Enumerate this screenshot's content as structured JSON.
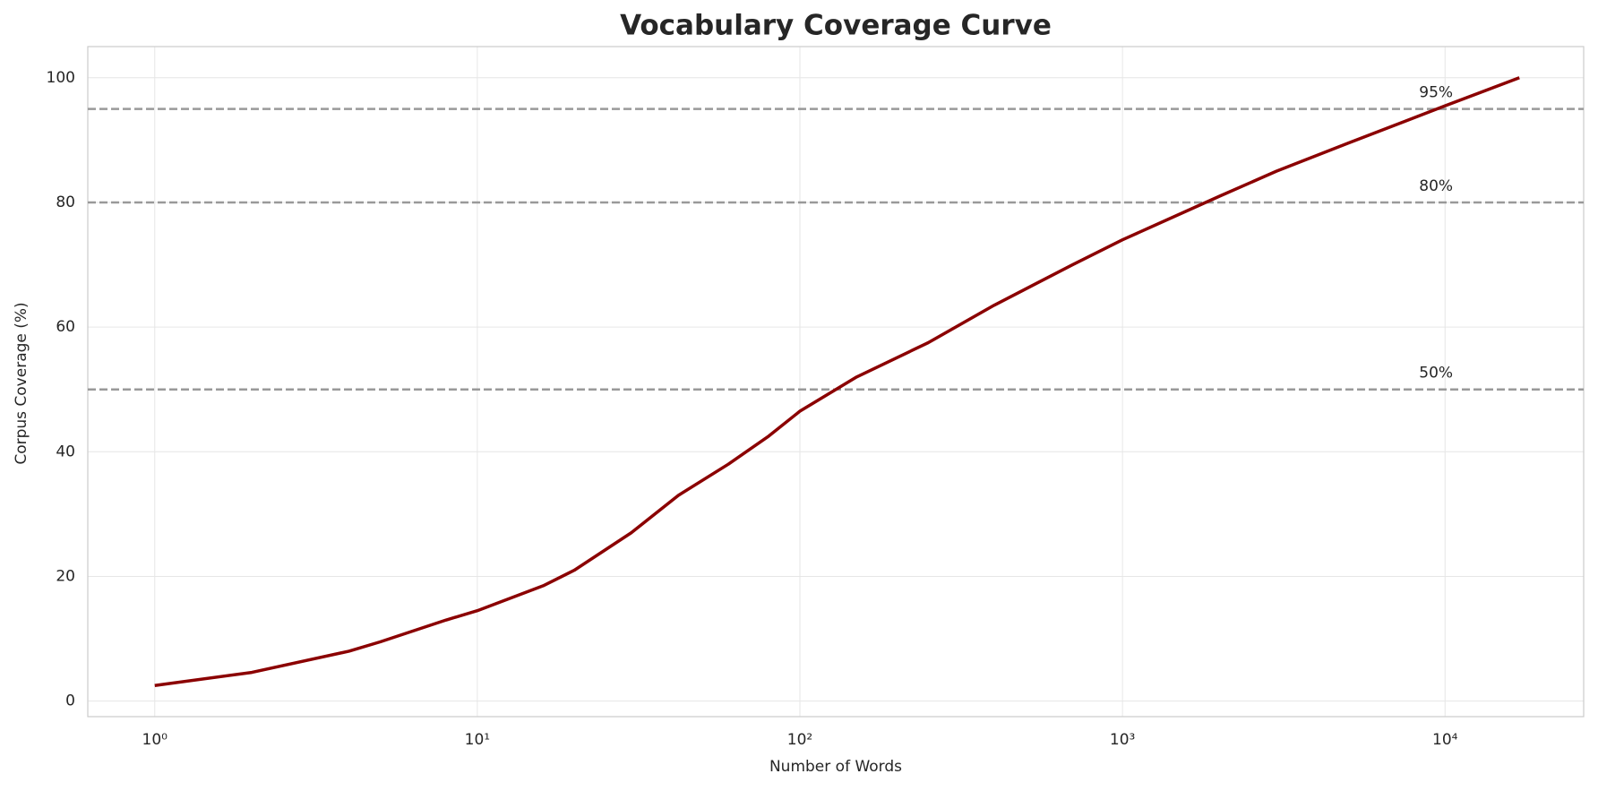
{
  "chart_data": {
    "type": "line",
    "title": "Vocabulary Coverage Curve",
    "x_label": "Number of Words",
    "y_label": "Corpus Coverage (%)",
    "x": [
      1,
      2,
      4,
      5,
      8,
      10,
      16,
      20,
      30,
      42,
      60,
      80,
      100,
      150,
      250,
      400,
      700,
      1000,
      2000,
      3000,
      5000,
      7500,
      10000,
      17000
    ],
    "values": [
      2.5,
      4.6,
      8.0,
      9.5,
      13,
      14.5,
      18.5,
      21,
      27,
      33,
      38,
      42.5,
      46.5,
      52,
      57.5,
      63.5,
      70,
      74,
      81,
      85,
      89.5,
      93,
      95.5,
      100
    ],
    "color": "#8b0000",
    "xscale": "log",
    "xlim": [
      0.62,
      26900
    ],
    "ylim": [
      -2.5,
      105
    ],
    "xticks": [
      {
        "value": 1,
        "label": "10⁰"
      },
      {
        "value": 10,
        "label": "10¹"
      },
      {
        "value": 100,
        "label": "10²"
      },
      {
        "value": 1000,
        "label": "10³"
      },
      {
        "value": 10000,
        "label": "10⁴"
      }
    ],
    "yticks": [
      0,
      20,
      40,
      60,
      80,
      100
    ],
    "grid": true,
    "hlines": [
      {
        "value": 50,
        "label": "50%"
      },
      {
        "value": 80,
        "label": "80%"
      },
      {
        "value": 95,
        "label": "95%"
      }
    ],
    "hline_color": "#999999"
  }
}
